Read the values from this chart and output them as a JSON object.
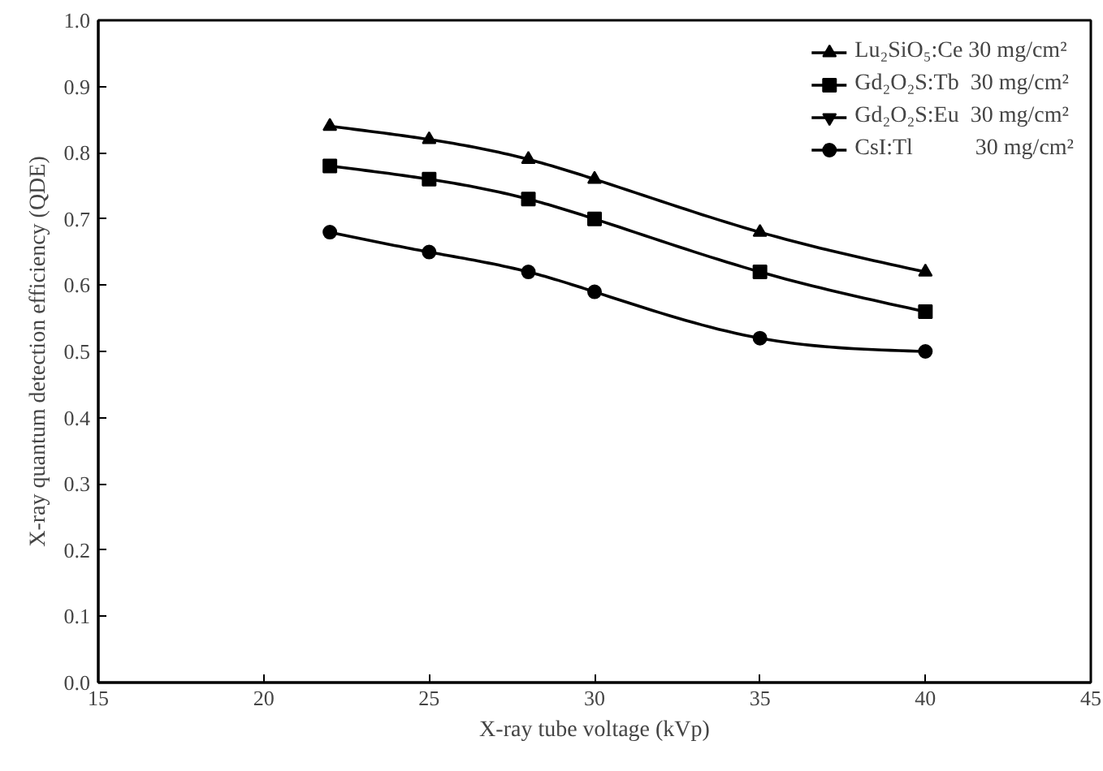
{
  "chart_data": {
    "type": "line",
    "xlabel": "X-ray tube voltage (kVp)",
    "ylabel": "X-ray quantum detection efficiency (QDE)",
    "x": [
      22,
      25,
      28,
      30,
      35,
      40
    ],
    "series": [
      {
        "name": "Lu₂SiO₅:Ce 30 mg/cm²",
        "color": "#000000",
        "marker": "triangle",
        "values": [
          0.84,
          0.82,
          0.79,
          0.76,
          0.68,
          0.62
        ]
      },
      {
        "name": "Gd₂O₂S:Tb  30 mg/cm²",
        "color": "#000000",
        "marker": "square",
        "values": [
          0.78,
          0.76,
          0.73,
          0.7,
          0.62,
          0.56
        ]
      },
      {
        "name": "Gd₂O₂S:Eu  30 mg/cm²",
        "color": "#000000",
        "marker": "inverted_triangle",
        "values": [
          null,
          null,
          null,
          null,
          null,
          null
        ]
      },
      {
        "name": "CsI:Tl           30 mg/cm²",
        "color": "#000000",
        "marker": "circle",
        "values": [
          0.68,
          0.65,
          0.62,
          0.59,
          0.52,
          0.5
        ]
      }
    ],
    "xlim": [
      15,
      45
    ],
    "xticks": [
      15,
      20,
      25,
      30,
      35,
      40,
      45
    ],
    "ylim": [
      0.0,
      1.0
    ],
    "yticks": [
      {
        "value": 0,
        "label": "0.0"
      },
      0.1,
      0.2,
      0.3,
      0.4,
      0.5,
      0.6,
      0.7,
      0.8,
      0.9,
      {
        "value": 1,
        "label": "1.0"
      }
    ],
    "grid": false,
    "legend": "top right",
    "line_style": "solid"
  }
}
